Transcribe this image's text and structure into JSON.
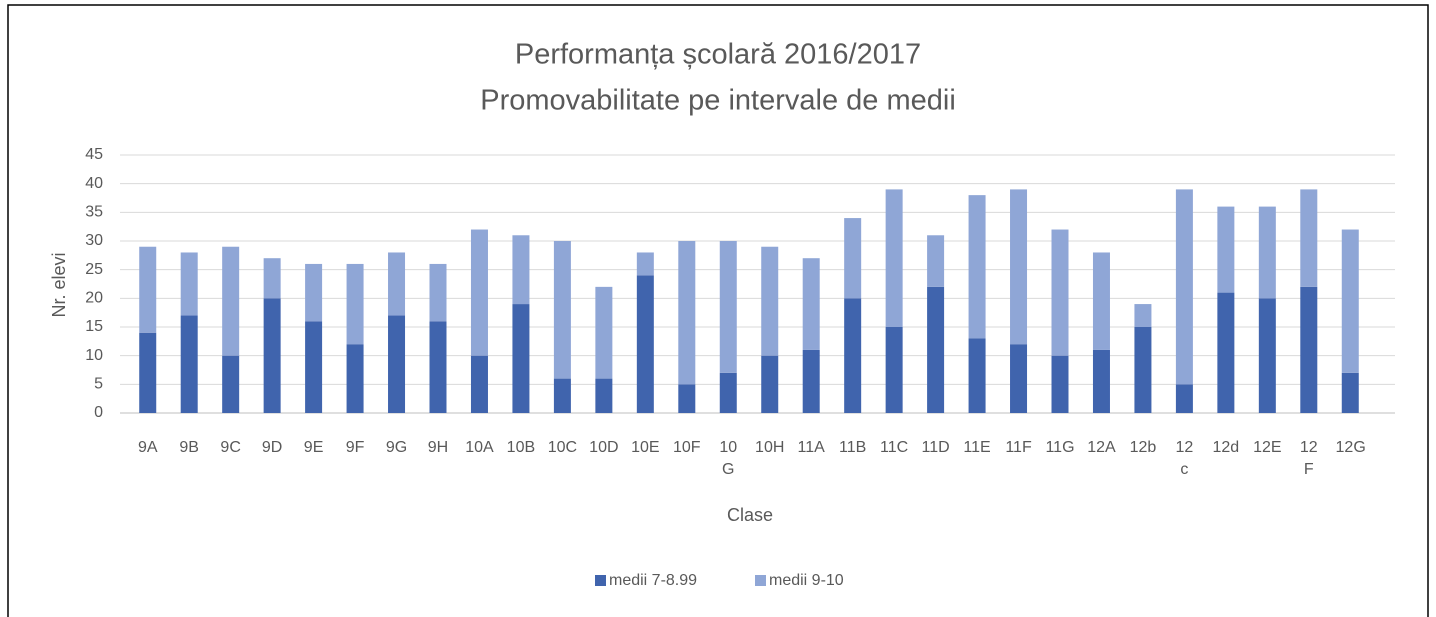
{
  "chart_data": {
    "type": "stacked_bar",
    "title": "Performanța școlară 2016/2017",
    "subtitle": "Promovabilitate pe intervale de medii",
    "x_label": "Clase",
    "y_label": "Nr. elevi",
    "categories": [
      "9A",
      "9B",
      "9C",
      "9D",
      "9E",
      "9F",
      "9G",
      "9H",
      "10A",
      "10B",
      "10C",
      "10D",
      "10E",
      "10F",
      "10 G",
      "10H",
      "11A",
      "11B",
      "11C",
      "11D",
      "11E",
      "11F",
      "11G",
      "12A",
      "12b",
      "12 c",
      "12d",
      "12E",
      "12 F",
      "12G"
    ],
    "series": [
      {
        "name": "medii 7-8.99",
        "color": "#4064ad",
        "values": [
          14,
          17,
          10,
          20,
          16,
          12,
          17,
          16,
          10,
          19,
          6,
          6,
          24,
          5,
          7,
          10,
          11,
          20,
          15,
          22,
          13,
          12,
          10,
          11,
          15,
          5,
          21,
          20,
          22,
          7
        ]
      },
      {
        "name": "medii 9-10",
        "color": "#8fa6d6",
        "values": [
          15,
          11,
          19,
          7,
          10,
          14,
          11,
          10,
          22,
          12,
          24,
          16,
          4,
          25,
          23,
          19,
          16,
          14,
          24,
          9,
          25,
          27,
          22,
          17,
          4,
          34,
          15,
          16,
          17,
          25
        ]
      }
    ],
    "ylim": [
      0,
      45
    ],
    "yticks": [
      0,
      5,
      10,
      15,
      20,
      25,
      30,
      35,
      40,
      45
    ],
    "grid": true,
    "legend": "bottom"
  }
}
